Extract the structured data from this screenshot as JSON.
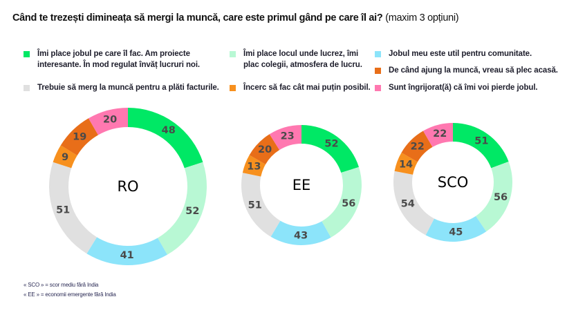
{
  "title": {
    "main": "Când te trezești dimineața să mergi la muncă, care este primul gând pe care îl ai?",
    "sub": "(maxim 3 opțiuni)"
  },
  "legend": [
    {
      "key": "jobul",
      "line1": "Îmi place jobul pe care îl fac. Am proiecte",
      "line2": "interesante. În mod regulat învăț lucruri noi.",
      "color": "#00e865"
    },
    {
      "key": "locul",
      "line1": "Îmi place locul unde lucrez, îmi",
      "line2": "plac colegii, atmosfera de lucru.",
      "color": "#b8f8d4"
    },
    {
      "key": "util",
      "line1": "Jobul meu este util pentru comunitate.",
      "line2": "",
      "color": "#8ce4fa"
    },
    {
      "key": "plec",
      "line1": "De când ajung la muncă, vreau să plec acasă.",
      "line2": "",
      "color": "#e86e19"
    },
    {
      "key": "facturi",
      "line1": "Trebuie să merg la muncă pentru a plăti facturile.",
      "line2": "",
      "color": "#e0e0e0"
    },
    {
      "key": "putin",
      "line1": "Încerc să fac cât mai puțin posibil.",
      "line2": "",
      "color": "#f7901e"
    },
    {
      "key": "ingrijorat",
      "line1": "Sunt îngrijorat(ă) că îmi voi pierde jobul.",
      "line2": "",
      "color": "#ff78b0"
    }
  ],
  "footnotes": [
    "« SCO » = scor mediu fără India",
    "« EE » = economii emergente fără India"
  ],
  "chart_data": {
    "type": "pie",
    "variant": "donut",
    "title": "Când te trezești dimineața să mergi la muncă, care este primul gând pe care îl ai? (maxim 3 opțiuni)",
    "categories": [
      "Îmi place jobul pe care îl fac. Am proiecte interesante. În mod regulat învăț lucruri noi.",
      "Îmi place locul unde lucrez, îmi plac colegii, atmosfera de lucru.",
      "Jobul meu este util pentru comunitate.",
      "Trebuie să merg la muncă pentru a plăti facturile.",
      "Încerc să fac cât mai puțin posibil.",
      "De când ajung la muncă, vreau să plec acasă.",
      "Sunt îngrijorat(ă) că îmi voi pierde jobul."
    ],
    "colors": [
      "#00e865",
      "#b8f8d4",
      "#8ce4fa",
      "#e0e0e0",
      "#f7901e",
      "#e86e19",
      "#ff78b0"
    ],
    "series": [
      {
        "name": "RO",
        "values": [
          48,
          52,
          41,
          51,
          9,
          19,
          20
        ]
      },
      {
        "name": "EE",
        "values": [
          52,
          56,
          43,
          51,
          13,
          20,
          23
        ]
      },
      {
        "name": "SCO",
        "values": [
          51,
          56,
          45,
          54,
          14,
          22,
          22
        ]
      }
    ],
    "legend_position": "top"
  }
}
